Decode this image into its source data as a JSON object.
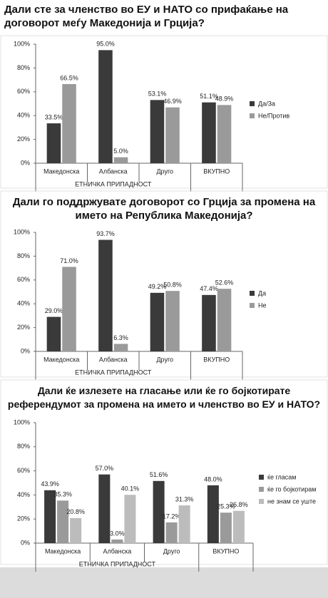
{
  "chart_data": [
    {
      "type": "bar",
      "title": "Дали сте за членство во ЕУ и НАТО со прифаќање на договорот меѓу Македонија и Грција?",
      "categories": [
        "Македонска",
        "Албанска",
        "Друго",
        "ВКУПНО"
      ],
      "xlabel": "ЕТНИЧКА ПРИПАДНОСТ",
      "series": [
        {
          "name": "Да/За",
          "color": "#3a3a3a",
          "values": [
            33.5,
            95.0,
            53.1,
            51.1
          ],
          "value_labels": [
            "33.5%",
            "95.0%",
            "53.1%",
            "51.1%"
          ]
        },
        {
          "name": "Не/Против",
          "color": "#9a9a9a",
          "values": [
            66.5,
            5.0,
            46.9,
            48.9
          ],
          "value_labels": [
            "66.5%",
            "5.0%",
            "46.9%",
            "48.9%"
          ]
        }
      ],
      "ylim": [
        0,
        100
      ],
      "yticks": [
        {
          "value": 0,
          "label": "0%"
        },
        {
          "value": 20,
          "label": "20%"
        },
        {
          "value": 40,
          "label": "40%"
        },
        {
          "value": 60,
          "label": "60%"
        },
        {
          "value": 80,
          "label": "80%"
        },
        {
          "value": 100,
          "label": "100%"
        }
      ],
      "legend": "right"
    },
    {
      "type": "bar",
      "title": "Дали го поддржувате договорот со Грција за промена на името на Република Македонија?",
      "categories": [
        "Македонска",
        "Албанска",
        "Друго",
        "ВКУПНО"
      ],
      "xlabel": "ЕТНИЧКА ПРИПАДНОСТ",
      "series": [
        {
          "name": "Да",
          "color": "#3a3a3a",
          "values": [
            29.0,
            93.7,
            49.2,
            47.4
          ],
          "value_labels": [
            "29.0%",
            "93.7%",
            "49.2%",
            "47.4%"
          ]
        },
        {
          "name": "Не",
          "color": "#9a9a9a",
          "values": [
            71.0,
            6.3,
            50.8,
            52.6
          ],
          "value_labels": [
            "71.0%",
            "6.3%",
            "50.8%",
            "52.6%"
          ]
        }
      ],
      "ylim": [
        0,
        100
      ],
      "yticks": [
        {
          "value": 0,
          "label": "0%"
        },
        {
          "value": 20,
          "label": "20%"
        },
        {
          "value": 40,
          "label": "40%"
        },
        {
          "value": 60,
          "label": "60%"
        },
        {
          "value": 80,
          "label": "80%"
        },
        {
          "value": 100,
          "label": "100%"
        }
      ],
      "legend": "right"
    },
    {
      "type": "bar",
      "title": "Дали ќе излезете на гласање или ќе го бојкотирате референдумот за промена на името и членство во ЕУ и НАТО?",
      "categories": [
        "Македонска",
        "Албанска",
        "Друго",
        "ВКУПНО"
      ],
      "xlabel": "ЕТНИЧКА ПРИПАДНОСТ",
      "series": [
        {
          "name": "ќе гласам",
          "color": "#3a3a3a",
          "values": [
            43.9,
            57.0,
            51.6,
            48.0
          ],
          "value_labels": [
            "43.9%",
            "57.0%",
            "51.6%",
            "48.0%"
          ]
        },
        {
          "name": "ќе го бојкотирам",
          "color": "#9a9a9a",
          "values": [
            35.3,
            3.0,
            17.2,
            25.3
          ],
          "value_labels": [
            "35.3%",
            "3.0%",
            "17.2%",
            "25.3%"
          ]
        },
        {
          "name": "не знам се уште",
          "color": "#bcbcbc",
          "values": [
            20.8,
            40.1,
            31.3,
            26.8
          ],
          "value_labels": [
            "20.8%",
            "40.1%",
            "31.3%",
            "26.8%"
          ]
        }
      ],
      "ylim": [
        0,
        100
      ],
      "yticks": [
        {
          "value": 0,
          "label": "0%"
        },
        {
          "value": 20,
          "label": "20%"
        },
        {
          "value": 40,
          "label": "40%"
        },
        {
          "value": 60,
          "label": "60%"
        },
        {
          "value": 80,
          "label": "80%"
        },
        {
          "value": 100,
          "label": "100%"
        }
      ],
      "legend": "right"
    }
  ]
}
